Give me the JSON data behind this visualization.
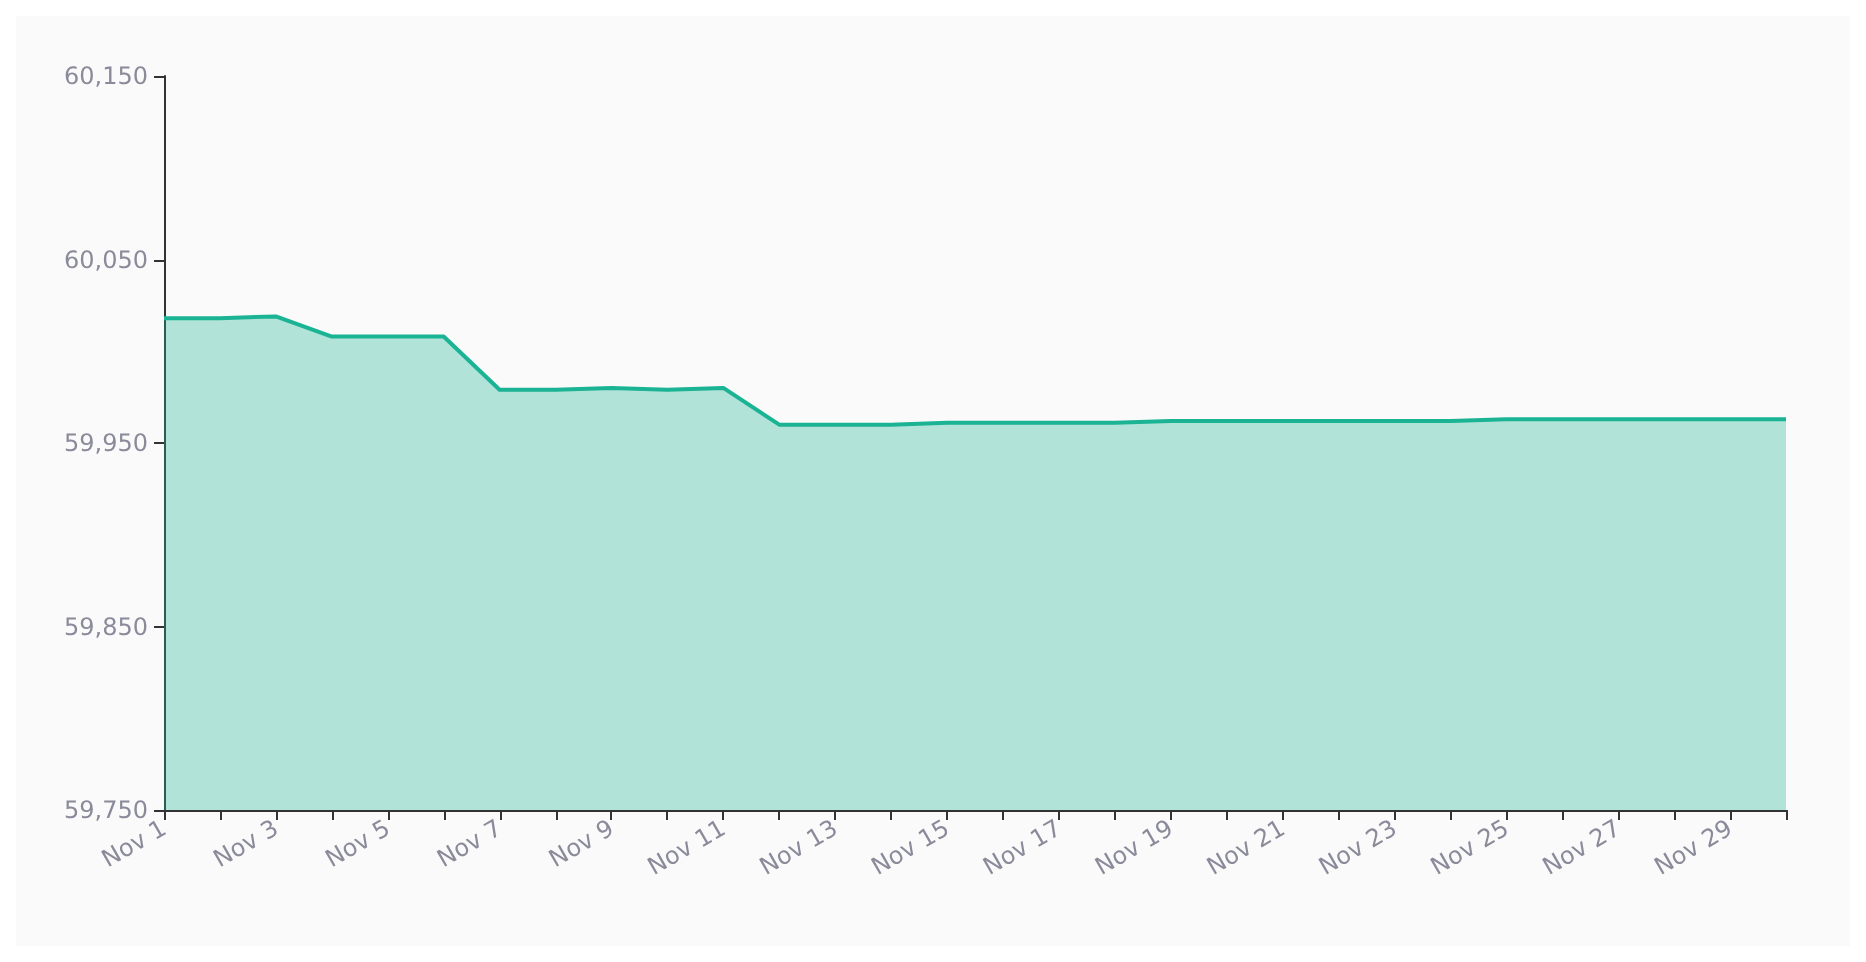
{
  "chart_data": {
    "type": "area",
    "categories": [
      "Nov 1",
      null,
      "Nov 3",
      null,
      "Nov 5",
      null,
      "Nov 7",
      null,
      "Nov 9",
      null,
      "Nov 11",
      null,
      "Nov 13",
      null,
      "Nov 15",
      null,
      "Nov 17",
      null,
      "Nov 19",
      null,
      "Nov 21",
      null,
      "Nov 23",
      null,
      "Nov 25",
      null,
      "Nov 27",
      null,
      "Nov 29",
      null
    ],
    "series": [
      {
        "color": "#1ab394",
        "values": [
          60018,
          60018,
          60019,
          60008,
          60008,
          60008,
          59979,
          59979,
          59980,
          59979,
          59980,
          59960,
          59960,
          59960,
          59961,
          59961,
          59961,
          59961,
          59962,
          59962,
          59962,
          59962,
          59962,
          59962,
          59963,
          59963,
          59963,
          59963,
          59963,
          59963
        ]
      }
    ],
    "ylim": [
      59750,
      60150
    ],
    "yticks": [
      {
        "value": 59750,
        "label": "59,750"
      },
      {
        "value": 59850,
        "label": "59,850"
      },
      {
        "value": 59950,
        "label": "59,950"
      },
      {
        "value": 60050,
        "label": "60,050"
      },
      {
        "value": 60150,
        "label": "60,150"
      }
    ],
    "grid": false,
    "marker": "none",
    "line_style": "solid"
  }
}
